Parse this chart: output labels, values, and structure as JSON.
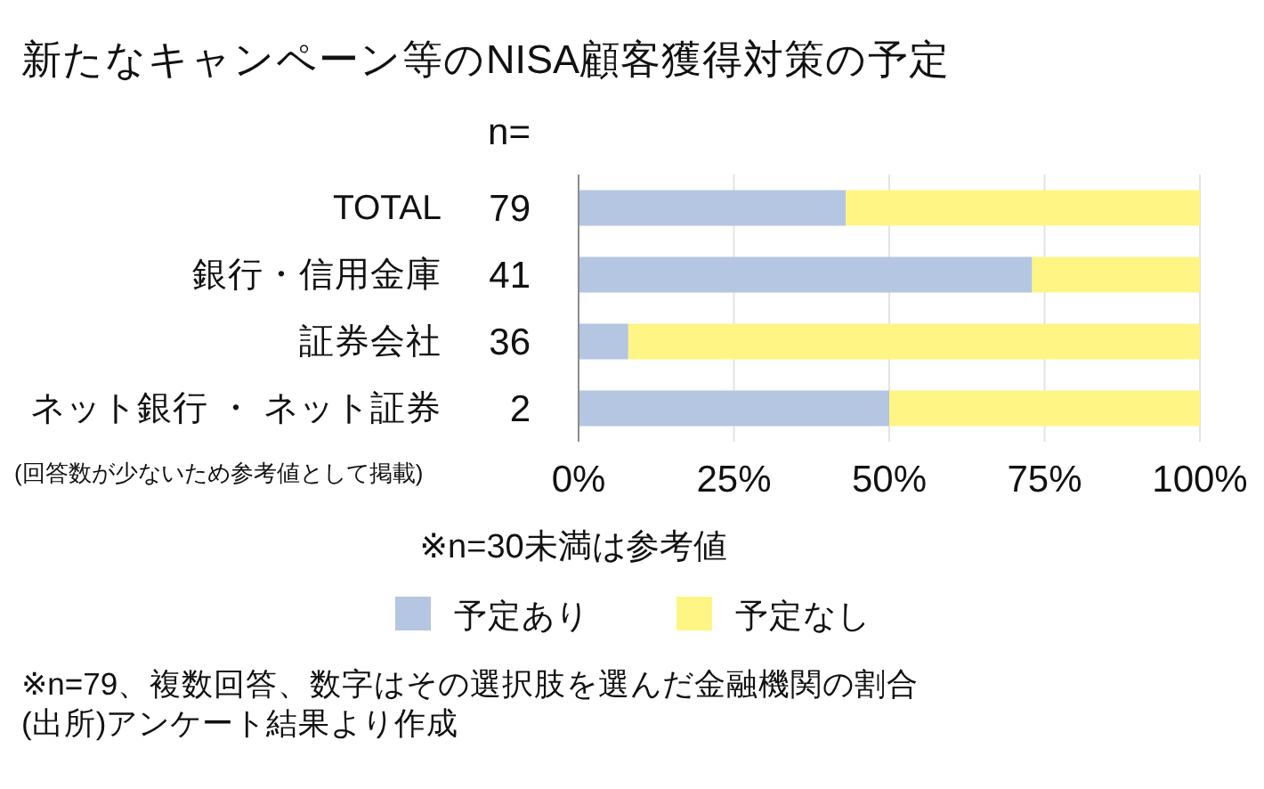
{
  "chart_data": {
    "type": "bar",
    "orientation": "horizontal",
    "stacked": true,
    "title": "新たなキャンペーン等のNISA顧客獲得対策の予定",
    "categories": [
      "TOTAL",
      "銀行・信用金庫",
      "証券会社",
      "ネット銀行 ・ ネット証券"
    ],
    "series": [
      {
        "name": "予定あり",
        "color": "#b4c6e1",
        "values": [
          43,
          73,
          8,
          50
        ]
      },
      {
        "name": "予定なし",
        "color": "#fff585",
        "values": [
          57,
          27,
          92,
          50
        ]
      }
    ],
    "xlim": [
      0,
      100
    ],
    "xticks": [
      {
        "value": 0,
        "label": "0%"
      },
      {
        "value": 25,
        "label": "25%"
      },
      {
        "value": 50,
        "label": "50%"
      },
      {
        "value": 75,
        "label": "75%"
      },
      {
        "value": 100,
        "label": "100%"
      }
    ],
    "grid": "x",
    "legend": "bottom",
    "annotations": [
      "n=",
      "79",
      "41",
      "36",
      "2",
      "(回答数が少ないため参考値として掲載)",
      "※n=30未満は参考値",
      "※n=79、複数回答、数字はその選択肢を選んだ金融機関の割合",
      "(出所)アンケート結果より作成"
    ]
  }
}
